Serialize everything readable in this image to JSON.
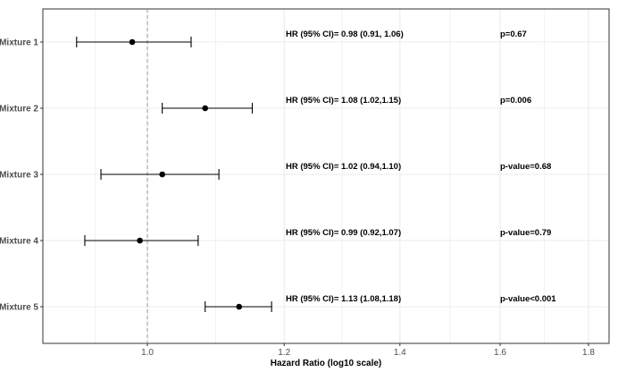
{
  "chart_data": {
    "type": "scatter",
    "subtype": "forest-plot",
    "title": "",
    "xlabel": "Hazard Ratio (log10 scale)",
    "ylabel": "",
    "x_scale": "log10",
    "xlim": [
      0.87,
      1.85
    ],
    "x_ticks": [
      1.0,
      1.2,
      1.4,
      1.6,
      1.8
    ],
    "x_tick_labels": [
      "1.0",
      "1.2",
      "1.4",
      "1.6",
      "1.8"
    ],
    "reference_line": 1.0,
    "grid": true,
    "legend": "none",
    "colors": {
      "point": "#000000",
      "errorbar": "#000000",
      "reference_line": "#999999",
      "grid": "#ebebeb",
      "panel_border": "#333333"
    },
    "categories": [
      "Mixture 1",
      "Mixture 2",
      "Mixture 3",
      "Mixture 4",
      "Mixture 5"
    ],
    "estimates": [
      0.98,
      1.08,
      1.02,
      0.99,
      1.13
    ],
    "ci_lower": [
      0.91,
      1.02,
      0.94,
      0.92,
      1.08
    ],
    "ci_upper": [
      1.06,
      1.15,
      1.1,
      1.07,
      1.18
    ],
    "hr_labels": [
      "HR (95% CI)= 0.98 (0.91, 1.06)",
      "HR (95% CI)= 1.08 (1.02,1.15)",
      "HR (95% CI)= 1.02 (0.94,1.10)",
      "HR (95% CI)= 0.99 (0.92,1.07)",
      "HR (95% CI)= 1.13 (1.08,1.18)"
    ],
    "p_labels": [
      "p=0.67",
      "p=0.006",
      "p-value=0.68",
      "p-value=0.79",
      "p-value<0.001"
    ]
  }
}
